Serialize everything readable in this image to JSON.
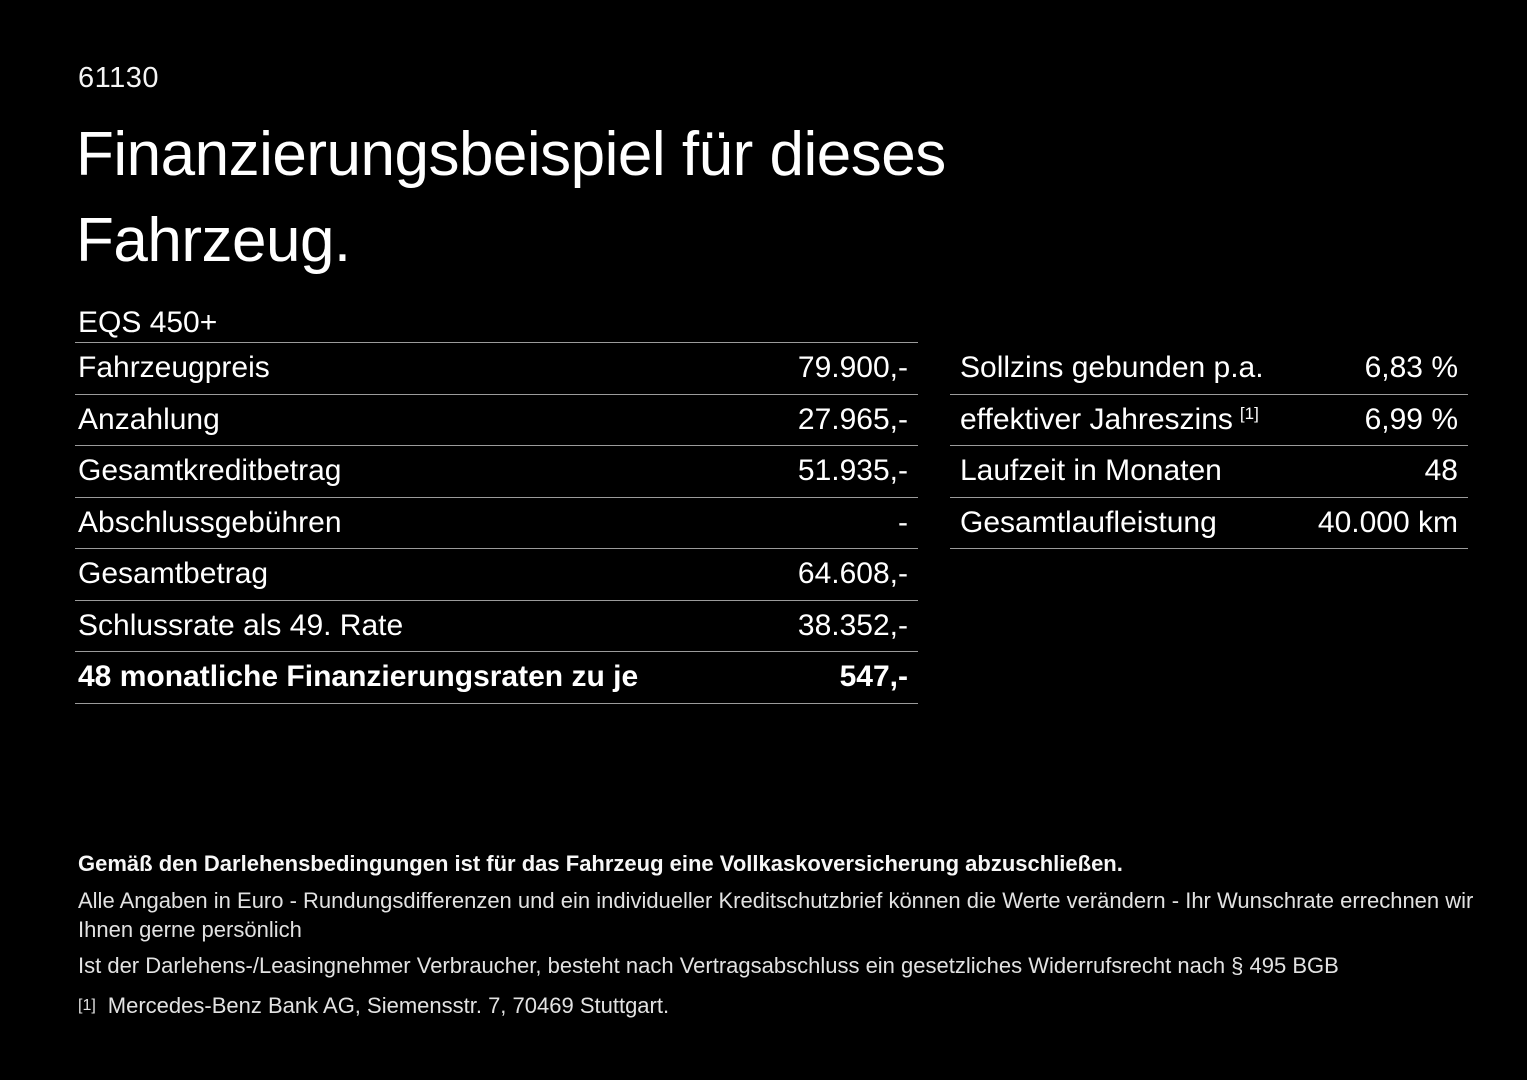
{
  "colors": {
    "background": "#000000",
    "text": "#ffffff",
    "separator": "#9b9b9b"
  },
  "header": {
    "doc_id": "61130",
    "title_line1": "Finanzierungsbeispiel für dieses",
    "title_line2": "Fahrzeug."
  },
  "vehicle": {
    "model": "EQS 450+"
  },
  "finance_table": {
    "rows": [
      {
        "label": "Fahrzeugpreis",
        "value": "79.900,-"
      },
      {
        "label": "Anzahlung",
        "value": "27.965,-"
      },
      {
        "label": "Gesamtkreditbetrag",
        "value": "51.935,-"
      },
      {
        "label": "Abschlussgebühren",
        "value": "-"
      },
      {
        "label": "Gesamtbetrag",
        "value": "64.608,-"
      },
      {
        "label": "Schlussrate als 49. Rate",
        "value": "38.352,-"
      },
      {
        "label": "48 monatliche Finanzierungsraten zu je",
        "value": "547,-"
      }
    ]
  },
  "terms_table": {
    "rows": [
      {
        "label": "Sollzins gebunden p.a.",
        "sup": "",
        "value": "6,83 %"
      },
      {
        "label": "effektiver Jahreszins",
        "sup": "[1]",
        "value": "6,99 %"
      },
      {
        "label": "Laufzeit in Monaten",
        "sup": "",
        "value": "48"
      },
      {
        "label": "Gesamtlaufleistung",
        "sup": "",
        "value": "40.000 km"
      }
    ]
  },
  "footer": {
    "insurance_note": "Gemäß den Darlehensbedingungen ist für das Fahrzeug eine Vollkaskoversicherung abzuschließen.",
    "disclaimer_line1": "Alle Angaben in Euro - Rundungsdifferenzen und ein individueller Kreditschutzbrief können die Werte verändern - Ihr Wunschrate errechnen wir Ihnen gerne persönlich",
    "disclaimer_line2": "Ist der Darlehens-/Leasingnehmer Verbraucher, besteht nach Vertragsabschluss ein gesetzliches Widerrufsrecht nach § 495 BGB",
    "footnote_marker": "[1]",
    "footnote_text": "Mercedes-Benz Bank AG, Siemensstr. 7, 70469 Stuttgart."
  }
}
